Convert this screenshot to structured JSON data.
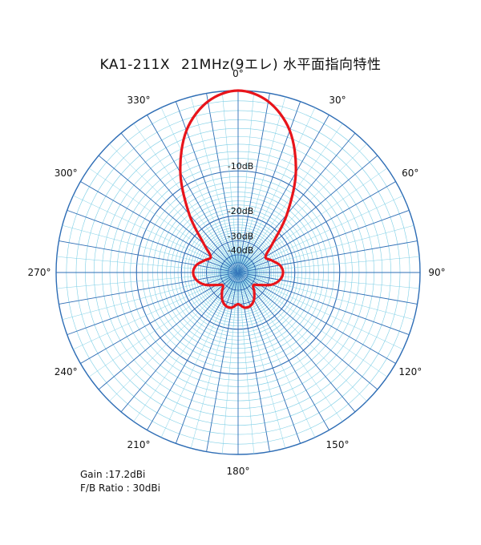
{
  "header": {
    "model": "KA1-211X",
    "subtitle": "21MHz(9エレ) 水平面指向特性"
  },
  "chart_data": {
    "type": "polar",
    "title": "KA1-211X  21MHz(9エレ) 水平面指向特性",
    "angle_ticks": [
      "0°",
      "30°",
      "60°",
      "90°",
      "120°",
      "150°",
      "180°",
      "210°",
      "240°",
      "270°",
      "300°",
      "330°"
    ],
    "angle_tick_values": [
      0,
      30,
      60,
      90,
      120,
      150,
      180,
      210,
      240,
      270,
      300,
      330
    ],
    "radial_axis": {
      "unit": "dB",
      "min": -50,
      "max": 0,
      "scale": "non-linear (ARRL-style log-periodic)"
    },
    "radial_labels": [
      "-10dB",
      "-20dB",
      "-30dB",
      "-40dB"
    ],
    "radial_label_values": [
      -10,
      -20,
      -30,
      -40
    ],
    "grid": true,
    "series": [
      {
        "color": "#e8141b",
        "angles_deg": [
          0,
          10,
          20,
          30,
          40,
          50,
          60,
          70,
          80,
          90,
          100,
          110,
          120,
          130,
          140,
          150,
          160,
          170,
          180,
          190,
          200,
          210,
          220,
          230,
          240,
          250,
          260,
          270,
          280,
          290,
          300,
          310,
          320,
          330,
          340,
          350
        ],
        "values_db": [
          0,
          -0.8,
          -3.2,
          -7.8,
          -15,
          -24,
          -30,
          -28,
          -25,
          -24,
          -25,
          -28,
          -34,
          -38,
          -34,
          -30,
          -28,
          -28,
          -30,
          -28,
          -28,
          -30,
          -34,
          -38,
          -34,
          -28,
          -25,
          -24,
          -25,
          -28,
          -30,
          -24,
          -15,
          -7.8,
          -3.2,
          -0.8
        ]
      }
    ]
  },
  "notes": {
    "gain": "Gain :17.2dBi",
    "fb_ratio": "F/B Ratio : 30dBi"
  },
  "colors": {
    "grid_minor": "#7ecfe6",
    "grid_major": "#2e6db5",
    "pattern": "#e8141b"
  }
}
